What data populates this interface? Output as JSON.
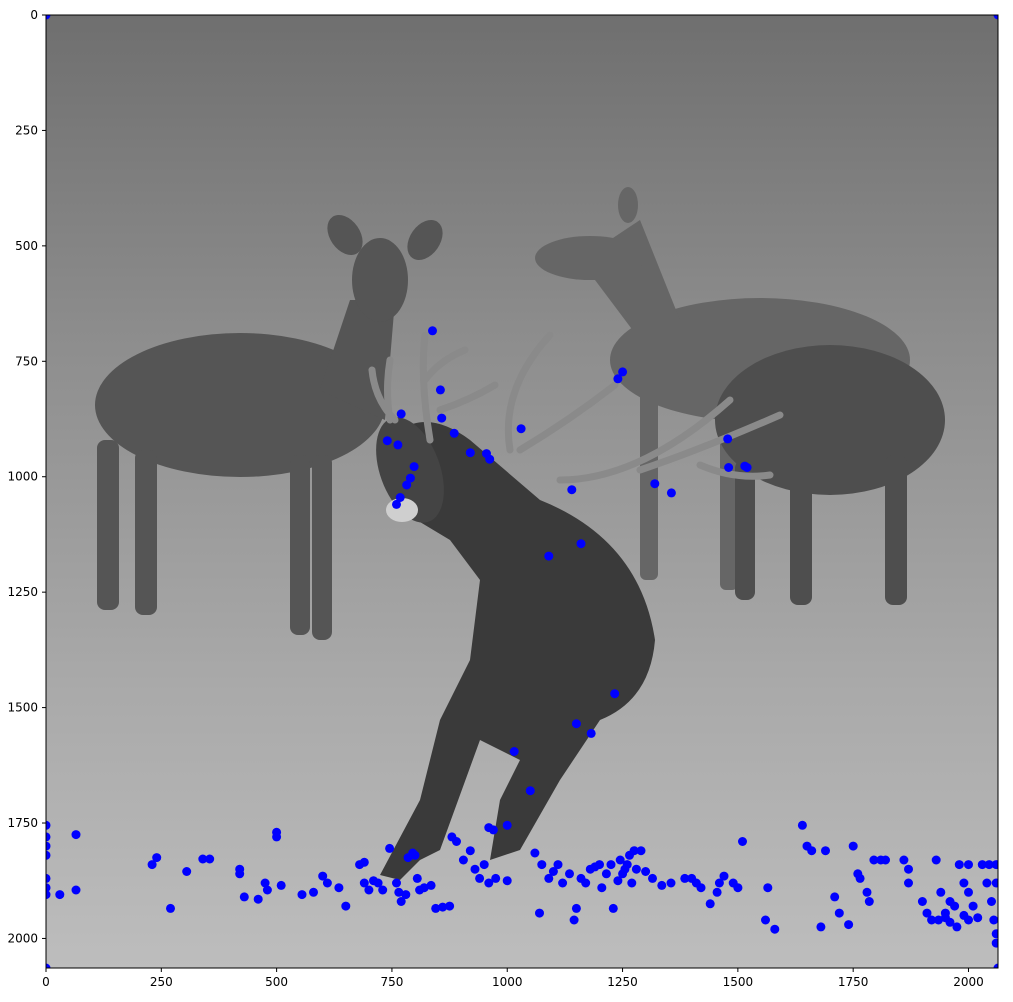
{
  "chart_data": {
    "type": "scatter",
    "background_image": "grayscale-photo-red-deer-stag-bellowing-with-three-hinds",
    "marker_color": "#0000ff",
    "xlim": [
      0,
      2064
    ],
    "ylim": [
      2064,
      0
    ],
    "x_ticks": [
      0,
      250,
      500,
      750,
      1000,
      1250,
      1500,
      1750,
      2000
    ],
    "y_ticks": [
      0,
      250,
      500,
      750,
      1000,
      1250,
      1500,
      1750,
      2000
    ],
    "points": [
      [
        0,
        0
      ],
      [
        2064,
        0
      ],
      [
        0,
        2064
      ],
      [
        2064,
        2064
      ],
      [
        838,
        684
      ],
      [
        1250,
        773
      ],
      [
        1240,
        788
      ],
      [
        855,
        812
      ],
      [
        770,
        864
      ],
      [
        858,
        873
      ],
      [
        885,
        906
      ],
      [
        740,
        922
      ],
      [
        763,
        931
      ],
      [
        1030,
        896
      ],
      [
        920,
        948
      ],
      [
        955,
        950
      ],
      [
        962,
        962
      ],
      [
        1090,
        1172
      ],
      [
        1320,
        1015
      ],
      [
        1356,
        1035
      ],
      [
        1478,
        918
      ],
      [
        1480,
        980
      ],
      [
        1515,
        977
      ],
      [
        1520,
        980
      ],
      [
        798,
        978
      ],
      [
        790,
        1003
      ],
      [
        782,
        1018
      ],
      [
        768,
        1045
      ],
      [
        760,
        1060
      ],
      [
        1140,
        1028
      ],
      [
        1160,
        1145
      ],
      [
        1233,
        1470
      ],
      [
        1150,
        1535
      ],
      [
        1182,
        1556
      ],
      [
        1015,
        1595
      ],
      [
        1050,
        1680
      ],
      [
        0,
        1755
      ],
      [
        0,
        1780
      ],
      [
        0,
        1800
      ],
      [
        0,
        1820
      ],
      [
        0,
        1870
      ],
      [
        0,
        1890
      ],
      [
        0,
        1905
      ],
      [
        30,
        1905
      ],
      [
        65,
        1775
      ],
      [
        65,
        1895
      ],
      [
        230,
        1840
      ],
      [
        240,
        1825
      ],
      [
        305,
        1855
      ],
      [
        340,
        1828
      ],
      [
        355,
        1828
      ],
      [
        420,
        1850
      ],
      [
        420,
        1860
      ],
      [
        430,
        1910
      ],
      [
        460,
        1915
      ],
      [
        475,
        1880
      ],
      [
        480,
        1895
      ],
      [
        500,
        1770
      ],
      [
        500,
        1780
      ],
      [
        510,
        1885
      ],
      [
        555,
        1905
      ],
      [
        580,
        1900
      ],
      [
        600,
        1865
      ],
      [
        610,
        1880
      ],
      [
        635,
        1890
      ],
      [
        650,
        1930
      ],
      [
        270,
        1935
      ],
      [
        680,
        1840
      ],
      [
        690,
        1835
      ],
      [
        690,
        1880
      ],
      [
        700,
        1895
      ],
      [
        710,
        1875
      ],
      [
        720,
        1880
      ],
      [
        730,
        1895
      ],
      [
        745,
        1805
      ],
      [
        760,
        1880
      ],
      [
        765,
        1900
      ],
      [
        770,
        1920
      ],
      [
        780,
        1905
      ],
      [
        785,
        1825
      ],
      [
        795,
        1815
      ],
      [
        800,
        1820
      ],
      [
        805,
        1870
      ],
      [
        810,
        1895
      ],
      [
        820,
        1890
      ],
      [
        835,
        1885
      ],
      [
        845,
        1935
      ],
      [
        860,
        1932
      ],
      [
        875,
        1930
      ],
      [
        880,
        1780
      ],
      [
        890,
        1790
      ],
      [
        905,
        1830
      ],
      [
        920,
        1810
      ],
      [
        930,
        1850
      ],
      [
        940,
        1870
      ],
      [
        950,
        1840
      ],
      [
        960,
        1760
      ],
      [
        970,
        1765
      ],
      [
        960,
        1880
      ],
      [
        975,
        1870
      ],
      [
        1000,
        1755
      ],
      [
        1000,
        1875
      ],
      [
        1060,
        1815
      ],
      [
        1070,
        1945
      ],
      [
        1075,
        1840
      ],
      [
        1090,
        1870
      ],
      [
        1100,
        1855
      ],
      [
        1110,
        1840
      ],
      [
        1120,
        1880
      ],
      [
        1135,
        1860
      ],
      [
        1145,
        1960
      ],
      [
        1150,
        1935
      ],
      [
        1160,
        1870
      ],
      [
        1170,
        1880
      ],
      [
        1180,
        1850
      ],
      [
        1190,
        1845
      ],
      [
        1200,
        1840
      ],
      [
        1205,
        1890
      ],
      [
        1215,
        1860
      ],
      [
        1225,
        1840
      ],
      [
        1230,
        1935
      ],
      [
        1240,
        1875
      ],
      [
        1245,
        1830
      ],
      [
        1250,
        1860
      ],
      [
        1255,
        1850
      ],
      [
        1260,
        1840
      ],
      [
        1265,
        1820
      ],
      [
        1270,
        1880
      ],
      [
        1275,
        1810
      ],
      [
        1280,
        1850
      ],
      [
        1290,
        1810
      ],
      [
        1300,
        1855
      ],
      [
        1315,
        1870
      ],
      [
        1335,
        1885
      ],
      [
        1355,
        1880
      ],
      [
        1385,
        1870
      ],
      [
        1400,
        1870
      ],
      [
        1410,
        1880
      ],
      [
        1420,
        1890
      ],
      [
        1440,
        1925
      ],
      [
        1455,
        1900
      ],
      [
        1460,
        1880
      ],
      [
        1470,
        1865
      ],
      [
        1490,
        1880
      ],
      [
        1500,
        1890
      ],
      [
        1510,
        1790
      ],
      [
        1560,
        1960
      ],
      [
        1565,
        1890
      ],
      [
        1580,
        1980
      ],
      [
        1640,
        1755
      ],
      [
        1650,
        1800
      ],
      [
        1660,
        1810
      ],
      [
        1680,
        1975
      ],
      [
        1690,
        1810
      ],
      [
        1710,
        1910
      ],
      [
        1720,
        1945
      ],
      [
        1740,
        1970
      ],
      [
        1750,
        1800
      ],
      [
        1760,
        1860
      ],
      [
        1765,
        1870
      ],
      [
        1780,
        1900
      ],
      [
        1785,
        1920
      ],
      [
        1795,
        1830
      ],
      [
        1810,
        1830
      ],
      [
        1820,
        1830
      ],
      [
        1860,
        1830
      ],
      [
        1870,
        1880
      ],
      [
        1870,
        1850
      ],
      [
        1900,
        1920
      ],
      [
        1910,
        1945
      ],
      [
        1920,
        1960
      ],
      [
        1930,
        1830
      ],
      [
        1940,
        1900
      ],
      [
        1950,
        1945
      ],
      [
        1960,
        1920
      ],
      [
        1970,
        1930
      ],
      [
        1980,
        1840
      ],
      [
        1990,
        1880
      ],
      [
        2000,
        1840
      ],
      [
        2000,
        1900
      ],
      [
        2010,
        1930
      ],
      [
        2020,
        1955
      ],
      [
        2030,
        1840
      ],
      [
        2040,
        1880
      ],
      [
        2045,
        1840
      ],
      [
        2050,
        1920
      ],
      [
        2055,
        1960
      ],
      [
        2060,
        1990
      ],
      [
        2060,
        2010
      ],
      [
        2060,
        1840
      ],
      [
        2060,
        1880
      ],
      [
        1960,
        1965
      ],
      [
        1975,
        1975
      ],
      [
        1990,
        1950
      ],
      [
        2000,
        1960
      ],
      [
        1935,
        1960
      ],
      [
        1950,
        1955
      ]
    ]
  }
}
